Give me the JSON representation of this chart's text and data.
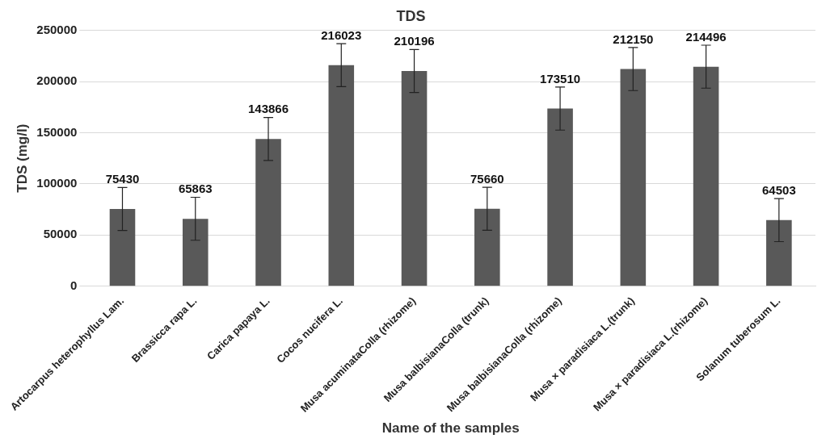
{
  "chart_data": {
    "type": "bar",
    "title": "TDS",
    "xlabel": "Name of the samples",
    "ylabel": "TDS (mg/l)",
    "categories": [
      "Artocarpus heterophyllus Lam.",
      "Brassicca rapa L.",
      "Carica papaya L.",
      "Cocos nucifera L.",
      "Musa acuminataColla (rhizome)",
      "Musa balbisianaColla (trunk)",
      "Musa balbisianaColla (rhizome)",
      "Musa × paradisiaca L.(trunk)",
      "Musa × paradisiaca L.(rhizome)",
      "Solanum tuberosum L."
    ],
    "values": [
      75430,
      65863,
      143866,
      216023,
      210196,
      75660,
      173510,
      212150,
      214496,
      64503
    ],
    "errors": [
      21000,
      21000,
      21000,
      21000,
      21000,
      21000,
      21000,
      21000,
      21000,
      21000
    ],
    "color": "#595959",
    "ylim": [
      0,
      250000
    ],
    "yticks": [
      0,
      50000,
      100000,
      150000,
      200000,
      250000
    ],
    "grid": "y",
    "legend": false,
    "data_labels": true
  }
}
